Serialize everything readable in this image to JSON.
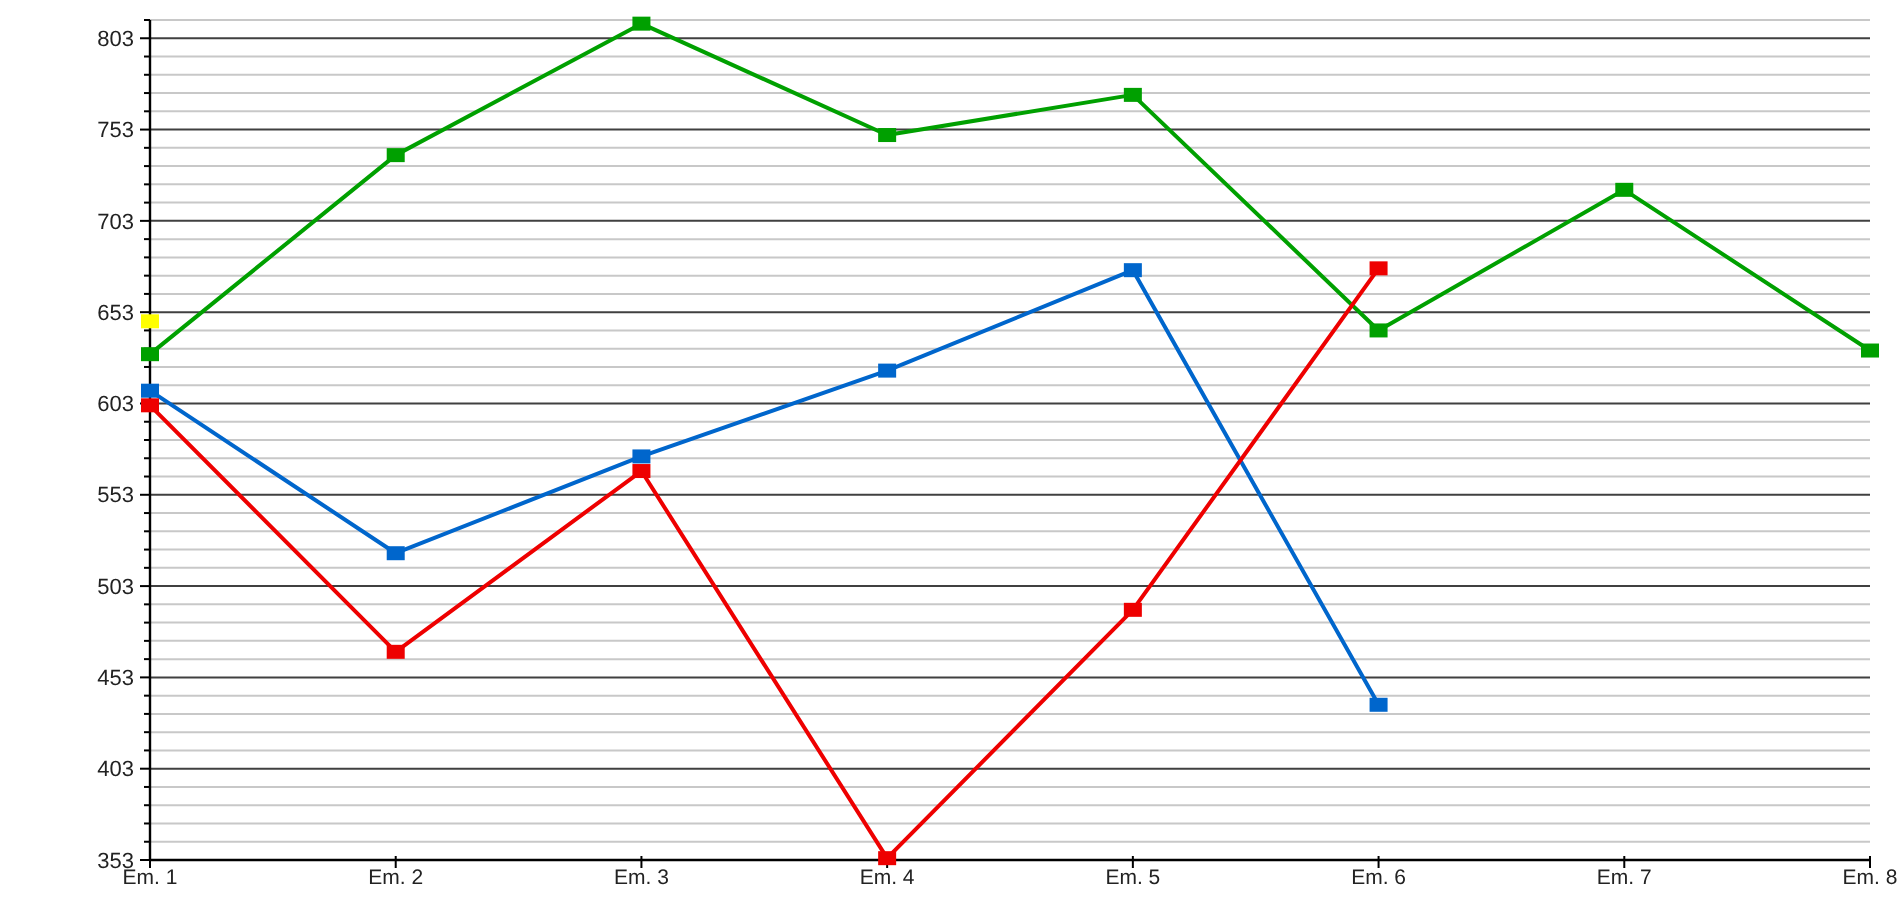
{
  "chart_data": {
    "type": "line",
    "categories": [
      "Em. 1",
      "Em. 2",
      "Em. 3",
      "Em. 4",
      "Em. 5",
      "Em. 6",
      "Em. 7",
      "Em. 8"
    ],
    "series": [
      {
        "color": "#00a000",
        "values": [
          630,
          739,
          811,
          750,
          772,
          643,
          720,
          632
        ]
      },
      {
        "color": "#0066cc",
        "values": [
          610,
          521,
          574,
          621,
          676,
          438,
          null,
          null
        ]
      },
      {
        "color": "#ee0000",
        "values": [
          602,
          467,
          566,
          354,
          490,
          677,
          null,
          null
        ]
      },
      {
        "type": "scatter",
        "color": "#ffff00",
        "values": [
          648,
          null,
          null,
          null,
          null,
          null,
          null,
          null
        ]
      }
    ],
    "ylim": [
      353,
      813
    ],
    "yticks": [
      353,
      {
        "value": 363,
        "label": null
      },
      {
        "value": 373,
        "label": null
      },
      {
        "value": 383,
        "label": null
      },
      {
        "value": 393,
        "label": null
      },
      403,
      {
        "value": 413,
        "label": null
      },
      {
        "value": 423,
        "label": null
      },
      {
        "value": 433,
        "label": null
      },
      {
        "value": 443,
        "label": null
      },
      453,
      {
        "value": 463,
        "label": null
      },
      {
        "value": 473,
        "label": null
      },
      {
        "value": 483,
        "label": null
      },
      {
        "value": 493,
        "label": null
      },
      503,
      {
        "value": 513,
        "label": null
      },
      {
        "value": 523,
        "label": null
      },
      {
        "value": 533,
        "label": null
      },
      {
        "value": 543,
        "label": null
      },
      553,
      {
        "value": 563,
        "label": null
      },
      {
        "value": 573,
        "label": null
      },
      {
        "value": 583,
        "label": null
      },
      {
        "value": 593,
        "label": null
      },
      603,
      {
        "value": 613,
        "label": null
      },
      {
        "value": 623,
        "label": null
      },
      {
        "value": 633,
        "label": null
      },
      {
        "value": 643,
        "label": null
      },
      653,
      {
        "value": 663,
        "label": null
      },
      {
        "value": 673,
        "label": null
      },
      {
        "value": 683,
        "label": null
      },
      {
        "value": 693,
        "label": null
      },
      703,
      {
        "value": 713,
        "label": null
      },
      {
        "value": 723,
        "label": null
      },
      {
        "value": 733,
        "label": null
      },
      {
        "value": 743,
        "label": null
      },
      753,
      {
        "value": 763,
        "label": null
      },
      {
        "value": 773,
        "label": null
      },
      {
        "value": 783,
        "label": null
      },
      {
        "value": 793,
        "label": null
      },
      803,
      {
        "value": 813,
        "label": null
      }
    ],
    "grid": "y",
    "marker": "square",
    "line_style": "solid"
  }
}
